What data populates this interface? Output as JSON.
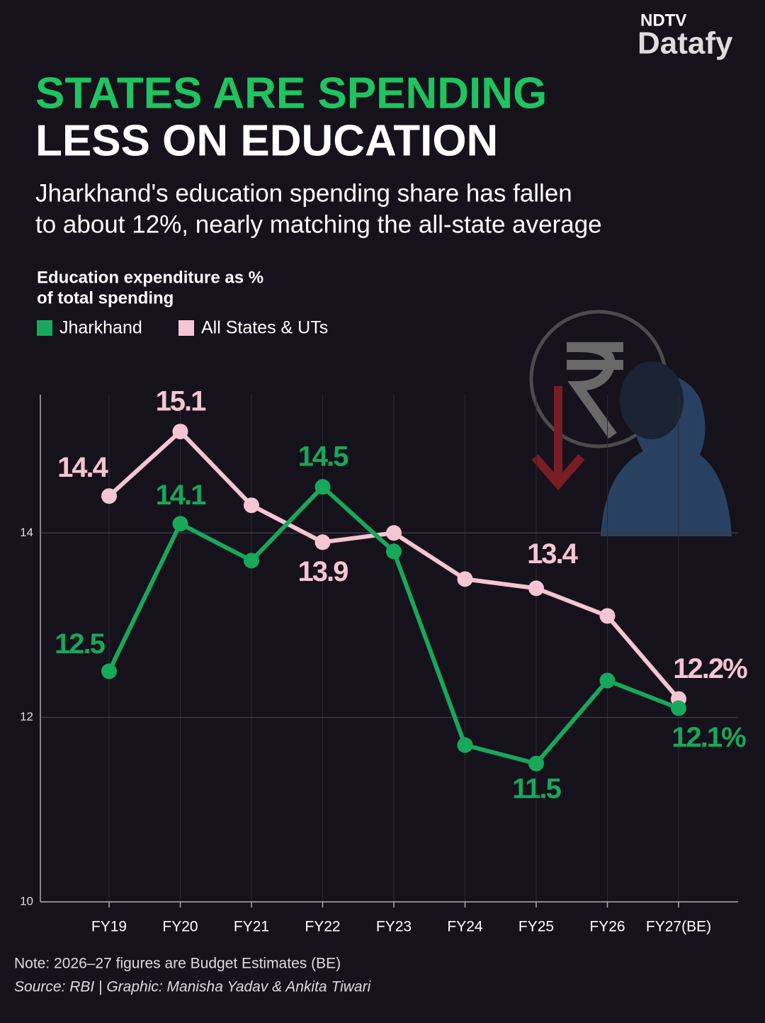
{
  "brand": {
    "top": "NDTV",
    "name": "Datafy"
  },
  "chart_data": {
    "type": "line",
    "title": [
      "STATES ARE SPENDING",
      "LESS ON EDUCATION"
    ],
    "subtitle": [
      "Jharkhand's education spending share has fallen",
      "to about 12%, nearly matching the all-state average"
    ],
    "y_label": [
      "Education expenditure as %",
      "of total spending"
    ],
    "categories": [
      "FY19",
      "FY20",
      "FY21",
      "FY22",
      "FY23",
      "FY24",
      "FY25",
      "FY26",
      "FY27(BE)"
    ],
    "series": [
      {
        "name": "Jharkhand",
        "color": "#17a85a",
        "values": [
          12.5,
          14.1,
          13.7,
          14.5,
          13.8,
          11.7,
          11.5,
          12.4,
          12.1
        ],
        "value_labels": [
          "12.5",
          "14.1",
          null,
          "14.5",
          null,
          null,
          "11.5",
          null,
          "12.1%"
        ]
      },
      {
        "name": "All States & UTs",
        "color": "#f6c5d2",
        "values": [
          14.4,
          15.1,
          14.3,
          13.9,
          14.0,
          13.5,
          13.4,
          13.1,
          12.2
        ],
        "value_labels": [
          "14.4",
          "15.1",
          null,
          "13.9",
          null,
          null,
          "13.4",
          null,
          "12.2%"
        ]
      }
    ],
    "ylim": [
      10,
      15.5
    ],
    "yticks": [
      10,
      12,
      14
    ],
    "grid": true,
    "notes": [
      "Note: 2026–27 figures are Budget Estimates (BE)",
      "Source: RBI | Graphic: Manisha Yadav & Ankita Tiwari"
    ]
  }
}
